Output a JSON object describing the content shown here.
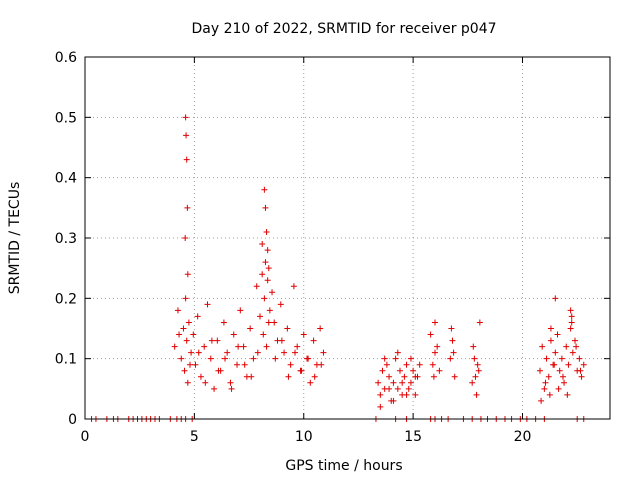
{
  "chart_data": {
    "type": "scatter",
    "title": "Day 210 of 2022, SRMTID for receiver p047",
    "xlabel": "GPS time / hours",
    "ylabel": "SRMTID / TECUs",
    "xlim": [
      0,
      24
    ],
    "ylim": [
      0,
      0.6
    ],
    "xticks": [
      0,
      5,
      10,
      15,
      20
    ],
    "yticks": [
      0,
      0.1,
      0.2,
      0.3,
      0.4,
      0.5,
      0.6
    ],
    "xtick_labels": [
      "0",
      "5",
      "10",
      "15",
      "20"
    ],
    "ytick_labels": [
      "0",
      "0.1",
      "0.2",
      "0.3",
      "0.4",
      "0.5",
      "0.6"
    ],
    "grid": true,
    "marker": "+",
    "color": "#e00000",
    "series": [
      {
        "name": "p047",
        "x": [
          0.3,
          0.5,
          1.0,
          1.3,
          1.5,
          2.0,
          2.2,
          2.4,
          2.6,
          2.8,
          3.0,
          3.2,
          3.4,
          3.9,
          4.2,
          4.4,
          4.6,
          4.9,
          13.3,
          14.2,
          14.7,
          15.8,
          16.0,
          16.3,
          16.6,
          17.3,
          17.7,
          18.1,
          18.4,
          18.8,
          19.2,
          19.5,
          19.9,
          20.2,
          20.6,
          21.0,
          22.5,
          22.8,
          4.1,
          4.25,
          4.4,
          4.5,
          4.55,
          4.6,
          4.65,
          4.7,
          4.75,
          4.85,
          4.95,
          5.05,
          5.15,
          5.3,
          5.45,
          5.6,
          5.75,
          5.9,
          6.05,
          6.2,
          6.35,
          6.5,
          6.65,
          6.8,
          6.95,
          7.1,
          7.25,
          7.4,
          7.55,
          7.7,
          7.85,
          8.0,
          8.1,
          8.15,
          8.2,
          8.25,
          8.3,
          8.35,
          8.45,
          8.55,
          8.65,
          8.8,
          8.95,
          9.1,
          9.25,
          9.4,
          9.55,
          9.7,
          9.85,
          10.0,
          10.15,
          10.3,
          10.45,
          10.6,
          10.75,
          10.9,
          4.3,
          4.8,
          5.2,
          5.5,
          5.8,
          6.1,
          6.4,
          6.7,
          7.0,
          7.3,
          7.6,
          7.9,
          8.4,
          8.7,
          9.0,
          9.3,
          9.6,
          9.9,
          10.2,
          10.5,
          10.8,
          4.6,
          4.62,
          4.65,
          4.68,
          4.58,
          4.7,
          8.2,
          8.25,
          8.3,
          8.35,
          8.1,
          8.4,
          13.4,
          13.5,
          13.6,
          13.7,
          13.8,
          13.9,
          14.0,
          14.1,
          14.2,
          14.3,
          14.4,
          14.5,
          14.6,
          14.7,
          14.8,
          14.9,
          15.0,
          15.1,
          15.2,
          15.3,
          13.5,
          13.7,
          13.9,
          14.1,
          14.3,
          14.5,
          14.7,
          14.9,
          15.1,
          15.8,
          15.9,
          16.0,
          16.1,
          16.2,
          16.0,
          15.95,
          16.7,
          16.8,
          16.9,
          16.75,
          16.85,
          17.7,
          17.8,
          17.9,
          18.0,
          17.75,
          17.85,
          17.95,
          18.05,
          20.8,
          20.9,
          21.0,
          21.1,
          21.2,
          21.3,
          21.4,
          21.5,
          21.6,
          21.7,
          21.8,
          21.9,
          22.0,
          22.1,
          22.2,
          22.3,
          22.4,
          22.5,
          22.6,
          22.7,
          22.8,
          20.85,
          21.05,
          21.25,
          21.45,
          21.65,
          21.85,
          22.05,
          22.25,
          22.45,
          22.65,
          21.5,
          22.2,
          22.25,
          21.3
        ],
        "y": [
          0,
          0,
          0,
          0,
          0,
          0,
          0,
          0,
          0,
          0,
          0,
          0,
          0,
          0,
          0,
          0,
          0,
          0,
          0,
          0,
          0,
          0,
          0,
          0,
          0,
          0,
          0,
          0,
          0,
          0,
          0,
          0,
          0,
          0,
          0,
          0,
          0,
          0,
          0.12,
          0.18,
          0.1,
          0.15,
          0.08,
          0.2,
          0.13,
          0.06,
          0.16,
          0.11,
          0.14,
          0.09,
          0.17,
          0.07,
          0.12,
          0.19,
          0.1,
          0.05,
          0.13,
          0.08,
          0.16,
          0.11,
          0.06,
          0.14,
          0.09,
          0.18,
          0.12,
          0.07,
          0.15,
          0.1,
          0.22,
          0.17,
          0.24,
          0.14,
          0.2,
          0.26,
          0.12,
          0.23,
          0.18,
          0.21,
          0.16,
          0.13,
          0.19,
          0.11,
          0.15,
          0.09,
          0.22,
          0.12,
          0.08,
          0.14,
          0.1,
          0.06,
          0.13,
          0.09,
          0.15,
          0.11,
          0.14,
          0.09,
          0.11,
          0.06,
          0.13,
          0.08,
          0.1,
          0.05,
          0.12,
          0.09,
          0.07,
          0.11,
          0.16,
          0.1,
          0.13,
          0.07,
          0.11,
          0.08,
          0.1,
          0.07,
          0.09,
          0.5,
          0.47,
          0.43,
          0.35,
          0.3,
          0.24,
          0.38,
          0.35,
          0.31,
          0.28,
          0.29,
          0.25,
          0.06,
          0.04,
          0.08,
          0.05,
          0.09,
          0.07,
          0.03,
          0.06,
          0.1,
          0.05,
          0.08,
          0.04,
          0.07,
          0.09,
          0.05,
          0.06,
          0.08,
          0.04,
          0.07,
          0.09,
          0.02,
          0.1,
          0.05,
          0.03,
          0.11,
          0.06,
          0.04,
          0.1,
          0.07,
          0.14,
          0.09,
          0.16,
          0.12,
          0.08,
          0.11,
          0.07,
          0.1,
          0.13,
          0.07,
          0.15,
          0.11,
          0.06,
          0.1,
          0.04,
          0.08,
          0.12,
          0.07,
          0.09,
          0.16,
          0.08,
          0.12,
          0.05,
          0.1,
          0.07,
          0.13,
          0.09,
          0.11,
          0.14,
          0.08,
          0.1,
          0.06,
          0.12,
          0.09,
          0.15,
          0.11,
          0.13,
          0.08,
          0.1,
          0.07,
          0.09,
          0.03,
          0.06,
          0.04,
          0.09,
          0.05,
          0.07,
          0.04,
          0.17,
          0.12,
          0.08,
          0.2,
          0.18,
          0.16,
          0.15
        ]
      }
    ]
  }
}
